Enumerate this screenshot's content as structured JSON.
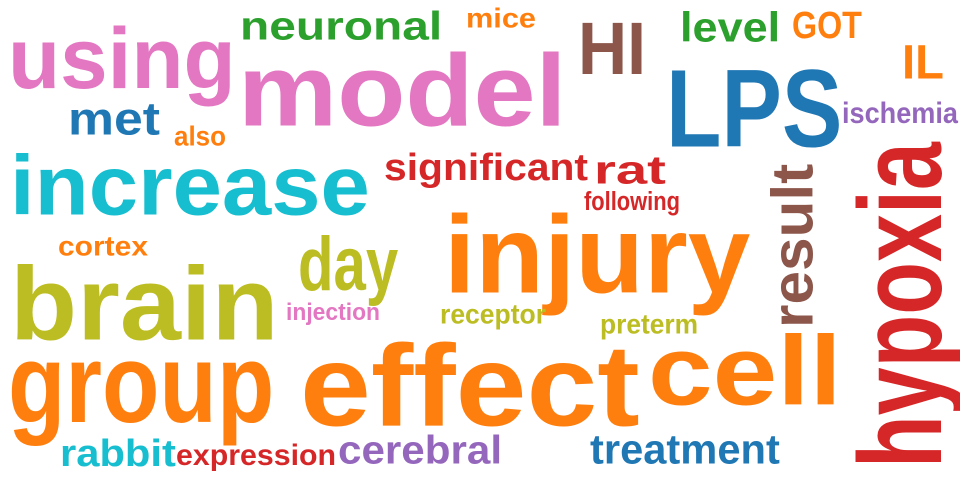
{
  "words": [
    {
      "id": "using",
      "text": "using",
      "color": "#e377c2",
      "rotated": false
    },
    {
      "id": "model",
      "text": "model",
      "color": "#e377c2",
      "rotated": false
    },
    {
      "id": "neuronal",
      "text": "neuronal",
      "color": "#2ca02c",
      "rotated": false
    },
    {
      "id": "mice",
      "text": "mice",
      "color": "#ff7f0e",
      "rotated": false
    },
    {
      "id": "hi",
      "text": "HI",
      "color": "#8c564b",
      "rotated": false
    },
    {
      "id": "level",
      "text": "level",
      "color": "#2ca02c",
      "rotated": false
    },
    {
      "id": "got",
      "text": "GOT",
      "color": "#ff7f0e",
      "rotated": false
    },
    {
      "id": "il",
      "text": "IL",
      "color": "#ff7f0e",
      "rotated": false
    },
    {
      "id": "lps",
      "text": "LPS",
      "color": "#1f77b4",
      "rotated": false
    },
    {
      "id": "ischemia",
      "text": "ischemia",
      "color": "#9467bd",
      "rotated": false
    },
    {
      "id": "met",
      "text": "met",
      "color": "#1f77b4",
      "rotated": false
    },
    {
      "id": "also",
      "text": "also",
      "color": "#ff7f0e",
      "rotated": false
    },
    {
      "id": "increase",
      "text": "increase",
      "color": "#17becf",
      "rotated": false
    },
    {
      "id": "significant",
      "text": "significant",
      "color": "#d62728",
      "rotated": false
    },
    {
      "id": "rat",
      "text": "rat",
      "color": "#d62728",
      "rotated": false
    },
    {
      "id": "following",
      "text": "following",
      "color": "#d62728",
      "rotated": false
    },
    {
      "id": "result",
      "text": "result",
      "color": "#8c564b",
      "rotated": true
    },
    {
      "id": "hypoxia",
      "text": "hypoxia",
      "color": "#d62728",
      "rotated": true
    },
    {
      "id": "cortex",
      "text": "cortex",
      "color": "#ff7f0e",
      "rotated": false
    },
    {
      "id": "day",
      "text": "day",
      "color": "#bcbd22",
      "rotated": false
    },
    {
      "id": "injury",
      "text": "injury",
      "color": "#ff7f0e",
      "rotated": false
    },
    {
      "id": "brain",
      "text": "brain",
      "color": "#bcbd22",
      "rotated": false
    },
    {
      "id": "injection",
      "text": "injection",
      "color": "#e377c2",
      "rotated": false
    },
    {
      "id": "receptor",
      "text": "receptor",
      "color": "#bcbd22",
      "rotated": false
    },
    {
      "id": "preterm",
      "text": "preterm",
      "color": "#bcbd22",
      "rotated": false
    },
    {
      "id": "group",
      "text": "group",
      "color": "#ff7f0e",
      "rotated": false
    },
    {
      "id": "effect",
      "text": "effect",
      "color": "#ff7f0e",
      "rotated": false
    },
    {
      "id": "cell",
      "text": "cell",
      "color": "#ff7f0e",
      "rotated": false
    },
    {
      "id": "rabbit",
      "text": "rabbit",
      "color": "#17becf",
      "rotated": false
    },
    {
      "id": "expression",
      "text": "expression",
      "color": "#d62728",
      "rotated": false
    },
    {
      "id": "cerebral",
      "text": "cerebral",
      "color": "#9467bd",
      "rotated": false
    },
    {
      "id": "treatment",
      "text": "treatment",
      "color": "#1f77b4",
      "rotated": false
    }
  ]
}
